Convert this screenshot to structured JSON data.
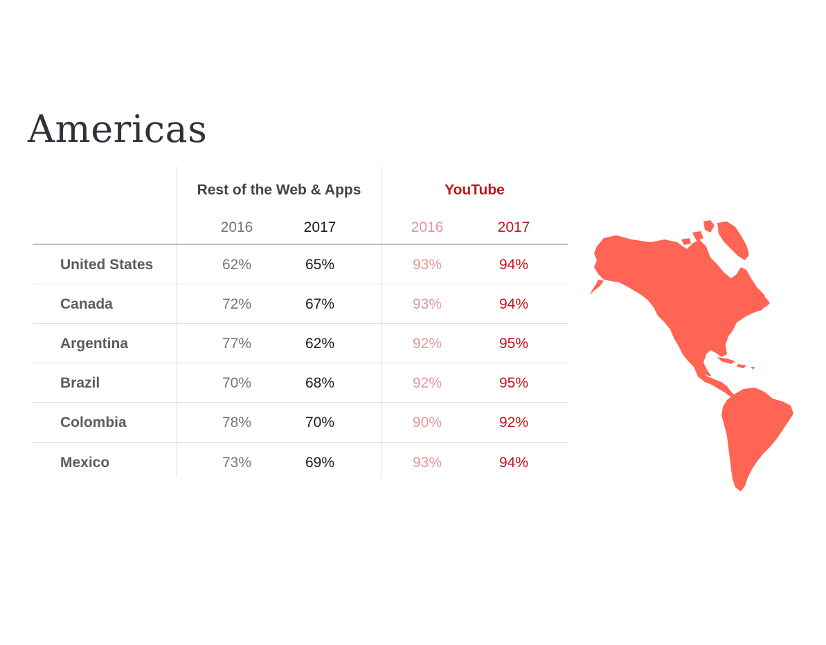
{
  "title": "Americas",
  "colors": {
    "youtube_2017": "#c4161c",
    "youtube_2016": "#e8959a",
    "rest_2016": "#757575",
    "rest_2017": "#1b1b1b",
    "map_fill": "#ff6455"
  },
  "map_icon": "americas-map-icon",
  "chart_data": {
    "type": "table",
    "groups": [
      {
        "name": "Rest of the Web & Apps",
        "years": [
          "2016",
          "2017"
        ]
      },
      {
        "name": "YouTube",
        "years": [
          "2016",
          "2017"
        ]
      }
    ],
    "rows": [
      {
        "country": "United States",
        "rest_2016": "62%",
        "rest_2017": "65%",
        "yt_2016": "93%",
        "yt_2017": "94%"
      },
      {
        "country": "Canada",
        "rest_2016": "72%",
        "rest_2017": "67%",
        "yt_2016": "93%",
        "yt_2017": "94%"
      },
      {
        "country": "Argentina",
        "rest_2016": "77%",
        "rest_2017": "62%",
        "yt_2016": "92%",
        "yt_2017": "95%"
      },
      {
        "country": "Brazil",
        "rest_2016": "70%",
        "rest_2017": "68%",
        "yt_2016": "92%",
        "yt_2017": "95%"
      },
      {
        "country": "Colombia",
        "rest_2016": "78%",
        "rest_2017": "70%",
        "yt_2016": "90%",
        "yt_2017": "92%"
      },
      {
        "country": "Mexico",
        "rest_2016": "73%",
        "rest_2017": "69%",
        "yt_2016": "93%",
        "yt_2017": "94%"
      }
    ]
  }
}
